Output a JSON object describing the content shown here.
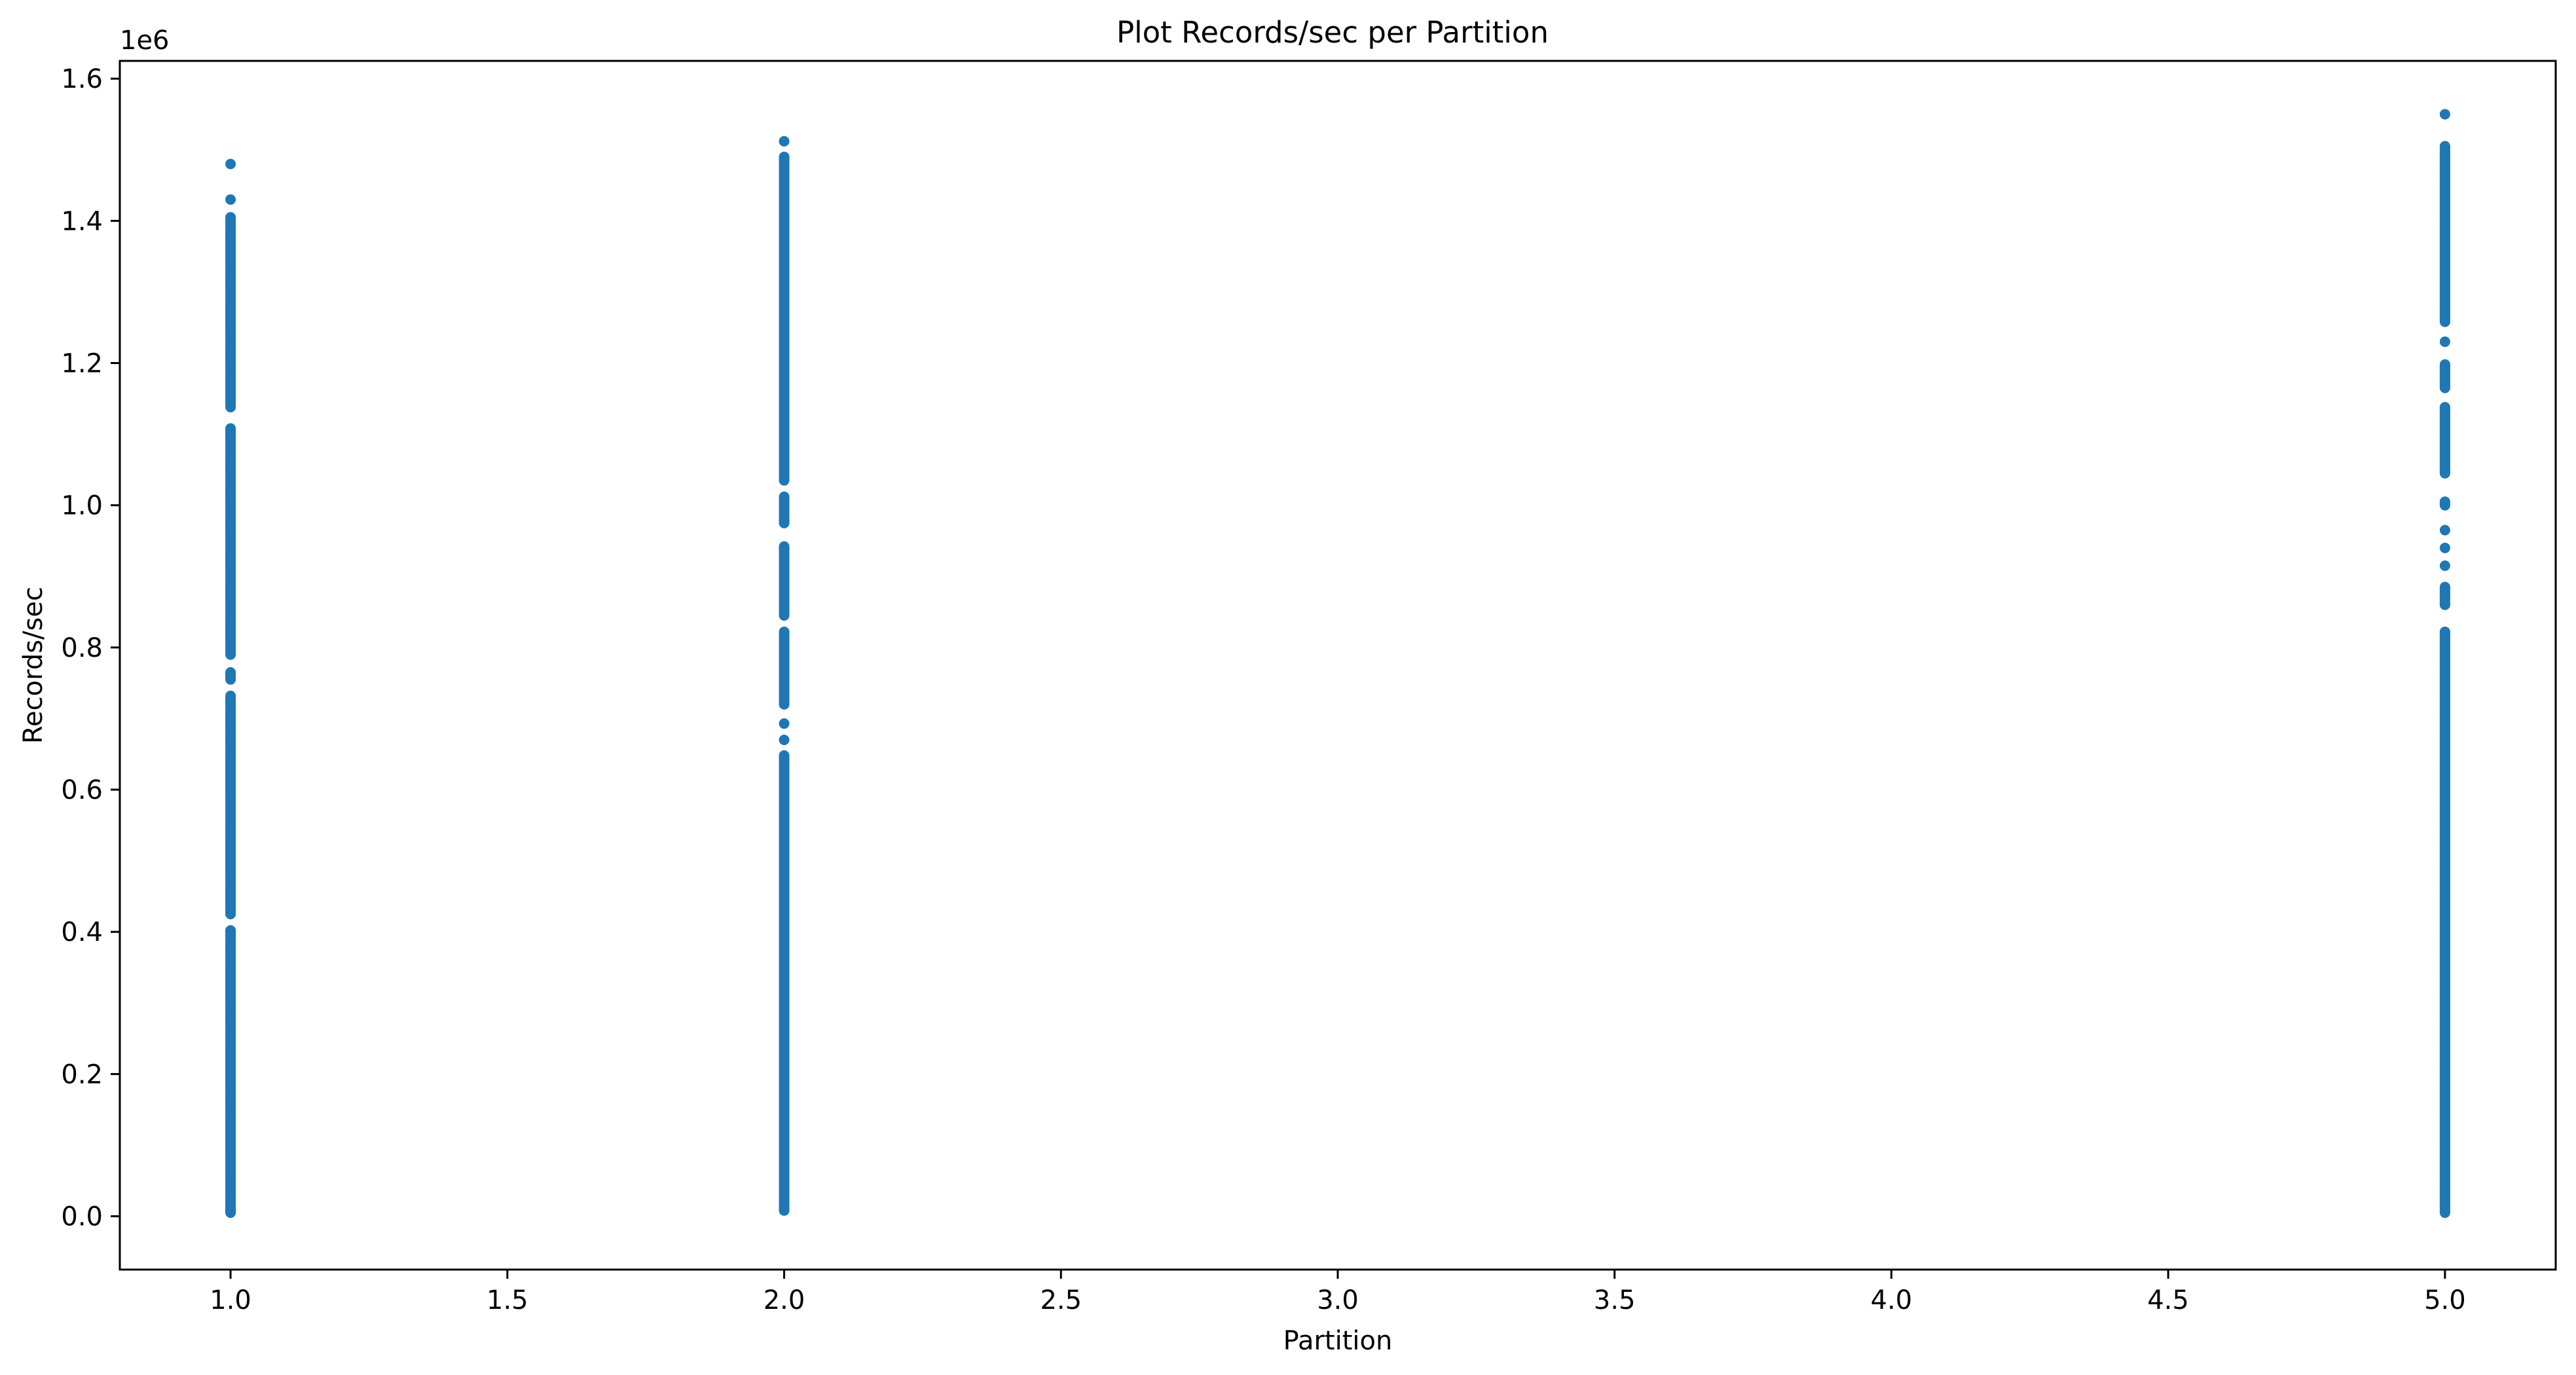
{
  "chart_data": {
    "type": "scatter",
    "title": "Plot Records/sec per Partition",
    "xlabel": "Partition",
    "ylabel": "Records/sec",
    "y_offset_text": "1e6",
    "xlim": [
      0.8,
      5.2
    ],
    "ylim": [
      -75000,
      1625000
    ],
    "x_ticks": [
      1.0,
      1.5,
      2.0,
      2.5,
      3.0,
      3.5,
      4.0,
      4.5,
      5.0
    ],
    "x_tick_labels": [
      "1.0",
      "1.5",
      "2.0",
      "2.5",
      "3.0",
      "3.5",
      "4.0",
      "4.5",
      "5.0"
    ],
    "y_ticks": [
      0,
      200000,
      400000,
      600000,
      800000,
      1000000,
      1200000,
      1400000,
      1600000
    ],
    "y_tick_labels": [
      "0.0",
      "0.2",
      "0.4",
      "0.6",
      "0.8",
      "1.0",
      "1.2",
      "1.4",
      "1.6"
    ],
    "grid": false,
    "marker_color": "#1f77b4",
    "series": [
      {
        "x": 1,
        "y": [
          1480000,
          1430000,
          1405000,
          1395000,
          1380000,
          1365000,
          1352000,
          1340000,
          1325000,
          1310000,
          1295000,
          1282000,
          1268000,
          1255000,
          1240000,
          1225000,
          1210000,
          1195000,
          1180000,
          1162000,
          1150000,
          1138000,
          1108000,
          1095000,
          1080000,
          1065000,
          1050000,
          1035000,
          1020000,
          1005000,
          990000,
          975000,
          960000,
          945000,
          930000,
          915000,
          900000,
          885000,
          870000,
          855000,
          842000,
          828000,
          815000,
          800000,
          790000,
          765000,
          755000,
          732000,
          720000,
          705000,
          690000,
          678000,
          665000,
          650000,
          638000,
          625000,
          612000,
          600000,
          588000,
          575000,
          562000,
          550000,
          538000,
          525000,
          512000,
          500000,
          488000,
          475000,
          462000,
          450000,
          438000,
          425000,
          402000,
          382000,
          370000,
          358000,
          345000,
          332000,
          320000,
          308000,
          295000,
          282000,
          270000,
          258000,
          245000,
          232000,
          220000,
          208000,
          195000,
          182000,
          170000,
          158000,
          145000,
          132000,
          120000,
          108000,
          95000,
          82000,
          70000,
          58000,
          45000,
          32000,
          20000,
          10000,
          5000
        ]
      },
      {
        "x": 2,
        "y": [
          1512000,
          1490000,
          1478000,
          1465000,
          1452000,
          1440000,
          1425000,
          1410000,
          1395000,
          1380000,
          1365000,
          1350000,
          1335000,
          1320000,
          1305000,
          1290000,
          1275000,
          1260000,
          1245000,
          1230000,
          1215000,
          1200000,
          1185000,
          1170000,
          1155000,
          1140000,
          1125000,
          1110000,
          1095000,
          1080000,
          1068000,
          1050000,
          1035000,
          1012000,
          1000000,
          988000,
          975000,
          942000,
          925000,
          905000,
          890000,
          875000,
          860000,
          845000,
          822000,
          808000,
          795000,
          780000,
          765000,
          750000,
          735000,
          720000,
          693000,
          670000,
          648000,
          635000,
          620000,
          605000,
          590000,
          575000,
          560000,
          545000,
          530000,
          515000,
          500000,
          485000,
          470000,
          455000,
          440000,
          425000,
          410000,
          395000,
          380000,
          365000,
          350000,
          335000,
          320000,
          305000,
          290000,
          275000,
          260000,
          245000,
          230000,
          215000,
          200000,
          185000,
          170000,
          155000,
          140000,
          125000,
          110000,
          95000,
          80000,
          65000,
          50000,
          35000,
          20000,
          8000
        ]
      },
      {
        "x": 5,
        "y": [
          1550000,
          1505000,
          1495000,
          1482000,
          1470000,
          1458000,
          1445000,
          1432000,
          1420000,
          1408000,
          1395000,
          1382000,
          1370000,
          1358000,
          1345000,
          1332000,
          1320000,
          1308000,
          1295000,
          1282000,
          1270000,
          1258000,
          1230000,
          1198000,
          1180000,
          1165000,
          1138000,
          1120000,
          1105000,
          1090000,
          1075000,
          1060000,
          1045000,
          1005000,
          1000000,
          965000,
          940000,
          915000,
          885000,
          875000,
          860000,
          822000,
          810000,
          795000,
          780000,
          765000,
          750000,
          735000,
          720000,
          705000,
          690000,
          675000,
          660000,
          645000,
          630000,
          615000,
          600000,
          585000,
          570000,
          555000,
          540000,
          522000,
          510000,
          495000,
          480000,
          465000,
          450000,
          435000,
          420000,
          405000,
          390000,
          375000,
          360000,
          345000,
          330000,
          315000,
          300000,
          285000,
          270000,
          255000,
          240000,
          225000,
          210000,
          195000,
          180000,
          165000,
          150000,
          135000,
          120000,
          105000,
          90000,
          75000,
          60000,
          45000,
          30000,
          15000,
          5000
        ]
      }
    ]
  }
}
